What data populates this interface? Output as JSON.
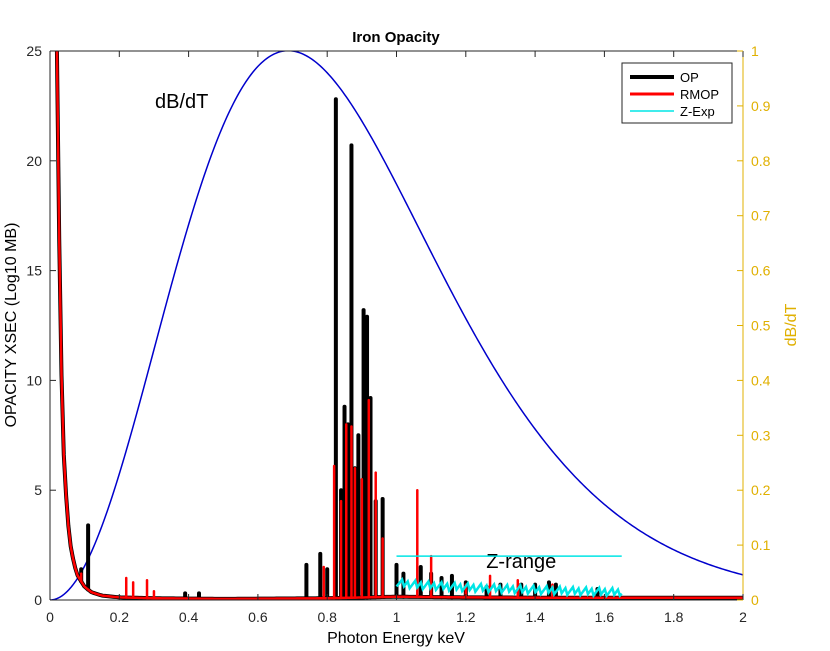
{
  "chart_data": {
    "type": "line",
    "title": "Iron Opacity",
    "xlabel": "Photon Energy keV",
    "ylabel_left": "OPACITY XSEC (Log10 MB)",
    "ylabel_right": "dB/dT",
    "xlim": [
      0,
      2
    ],
    "ylim_left": [
      0,
      25
    ],
    "ylim_right": [
      0,
      1
    ],
    "x_ticks": [
      "0",
      "0.2",
      "0.4",
      "0.6",
      "0.8",
      "1",
      "1.2",
      "1.4",
      "1.6",
      "1.8",
      "2"
    ],
    "y_left_ticks": [
      "0",
      "5",
      "10",
      "15",
      "20",
      "25"
    ],
    "y_right_ticks": [
      "0",
      "0.1",
      "0.2",
      "0.3",
      "0.4",
      "0.5",
      "0.6",
      "0.7",
      "0.8",
      "0.9",
      "1"
    ],
    "grid": false,
    "legend": {
      "placement": "top-right",
      "entries": [
        "OP",
        "RMOP",
        "Z-Exp"
      ]
    },
    "colors": {
      "op": "#000000",
      "rmop": "#ff0000",
      "zexp": "#00e5e5",
      "dbdt": "#0000cc",
      "right_axis": "#e0b000"
    },
    "series": [
      {
        "name": "OP",
        "axis": "left",
        "continuum": [
          [
            0.02,
            25
          ],
          [
            0.03,
            12
          ],
          [
            0.04,
            6.5
          ],
          [
            0.05,
            3.8
          ],
          [
            0.06,
            2.4
          ],
          [
            0.07,
            1.6
          ],
          [
            0.08,
            1.1
          ],
          [
            0.1,
            0.6
          ],
          [
            0.12,
            0.35
          ],
          [
            0.15,
            0.2
          ],
          [
            0.2,
            0.12
          ],
          [
            0.3,
            0.08
          ],
          [
            0.5,
            0.05
          ],
          [
            0.8,
            0.08
          ],
          [
            1.0,
            0.15
          ],
          [
            1.2,
            0.12
          ],
          [
            1.5,
            0.1
          ],
          [
            2.0,
            0.1
          ]
        ],
        "peaks": [
          [
            0.09,
            1.4
          ],
          [
            0.11,
            3.4
          ],
          [
            0.39,
            0.3
          ],
          [
            0.43,
            0.3
          ],
          [
            0.74,
            1.6
          ],
          [
            0.78,
            2.1
          ],
          [
            0.8,
            1.4
          ],
          [
            0.825,
            22.8
          ],
          [
            0.84,
            5.0
          ],
          [
            0.85,
            8.8
          ],
          [
            0.86,
            8.0
          ],
          [
            0.87,
            20.7
          ],
          [
            0.88,
            6.0
          ],
          [
            0.89,
            7.5
          ],
          [
            0.905,
            13.2
          ],
          [
            0.915,
            12.9
          ],
          [
            0.925,
            9.2
          ],
          [
            0.94,
            4.5
          ],
          [
            0.96,
            4.6
          ],
          [
            1.0,
            1.6
          ],
          [
            1.02,
            1.2
          ],
          [
            1.07,
            1.5
          ],
          [
            1.1,
            1.2
          ],
          [
            1.13,
            1.0
          ],
          [
            1.16,
            1.1
          ],
          [
            1.2,
            0.8
          ],
          [
            1.26,
            0.6
          ],
          [
            1.3,
            0.7
          ],
          [
            1.36,
            0.7
          ],
          [
            1.4,
            0.7
          ],
          [
            1.44,
            0.8
          ],
          [
            1.46,
            0.7
          ],
          [
            1.58,
            0.5
          ]
        ]
      },
      {
        "name": "RMOP",
        "axis": "left",
        "continuum": [
          [
            0.02,
            25
          ],
          [
            0.03,
            12
          ],
          [
            0.04,
            6.5
          ],
          [
            0.05,
            3.8
          ],
          [
            0.06,
            2.4
          ],
          [
            0.07,
            1.6
          ],
          [
            0.08,
            1.1
          ],
          [
            0.1,
            0.6
          ],
          [
            0.12,
            0.35
          ],
          [
            0.15,
            0.2
          ],
          [
            0.2,
            0.12
          ],
          [
            0.3,
            0.08
          ],
          [
            0.5,
            0.05
          ],
          [
            0.8,
            0.08
          ],
          [
            1.0,
            0.15
          ],
          [
            1.2,
            0.12
          ],
          [
            1.5,
            0.1
          ],
          [
            2.0,
            0.1
          ]
        ],
        "peaks": [
          [
            0.09,
            1.2
          ],
          [
            0.22,
            1.0
          ],
          [
            0.24,
            0.8
          ],
          [
            0.28,
            0.9
          ],
          [
            0.3,
            0.4
          ],
          [
            0.79,
            1.5
          ],
          [
            0.82,
            6.1
          ],
          [
            0.84,
            4.5
          ],
          [
            0.855,
            8.0
          ],
          [
            0.87,
            7.9
          ],
          [
            0.88,
            6.0
          ],
          [
            0.9,
            5.5
          ],
          [
            0.92,
            9.1
          ],
          [
            0.94,
            5.8
          ],
          [
            0.96,
            2.8
          ],
          [
            1.06,
            5.0
          ],
          [
            1.1,
            2.0
          ],
          [
            1.2,
            0.7
          ],
          [
            1.27,
            1.1
          ],
          [
            1.35,
            0.9
          ],
          [
            1.45,
            0.7
          ]
        ]
      },
      {
        "name": "Z-Exp",
        "axis": "left",
        "x_range": [
          1.0,
          1.65
        ],
        "level_start": 0.8,
        "level_end": 0.35
      },
      {
        "name": "dB/dT",
        "axis": "right",
        "peak_x": 0.7,
        "peak_y": 1.0,
        "x_range": [
          0,
          2
        ]
      }
    ],
    "annotations": [
      {
        "text": "dB/dT",
        "x": 0.38,
        "y": 22.4
      },
      {
        "text": "Z-range",
        "x": 1.36,
        "y": 1.45,
        "line_x": [
          1.0,
          1.65
        ],
        "line_y": 2.0
      }
    ]
  }
}
